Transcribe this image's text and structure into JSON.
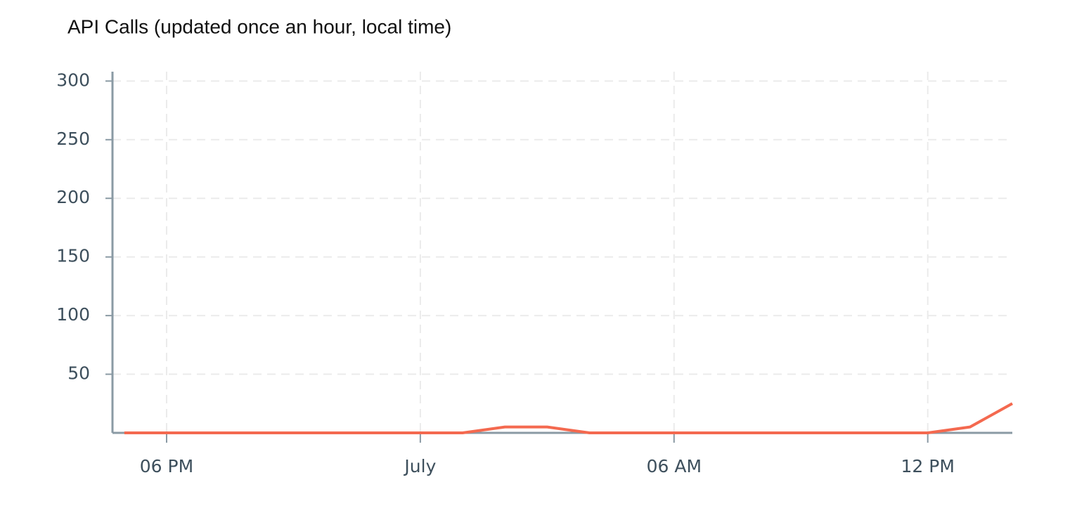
{
  "chart_data": {
    "type": "line",
    "title": "API Calls (updated once an hour, local time)",
    "x": [
      -7,
      -6,
      -5,
      -4,
      -3,
      -2,
      -1,
      0,
      1,
      2,
      3,
      4,
      5,
      6,
      7,
      8,
      9,
      10,
      11,
      12,
      13,
      14
    ],
    "series": [
      {
        "name": "API Calls",
        "color": "#f4694f",
        "values": [
          0,
          0,
          0,
          0,
          0,
          0,
          0,
          0,
          0,
          5,
          5,
          0,
          0,
          0,
          0,
          0,
          0,
          0,
          0,
          0,
          5,
          25
        ]
      }
    ],
    "xlim": [
      -7.28,
      14
    ],
    "xticks": [
      {
        "value": -6,
        "label": "06 PM"
      },
      {
        "value": 0,
        "label": "July"
      },
      {
        "value": 6,
        "label": "06 AM"
      },
      {
        "value": 12,
        "label": "12 PM"
      }
    ],
    "ylim": [
      0,
      308
    ],
    "yticks": [
      50,
      100,
      150,
      200,
      250,
      300
    ],
    "grid": true
  }
}
